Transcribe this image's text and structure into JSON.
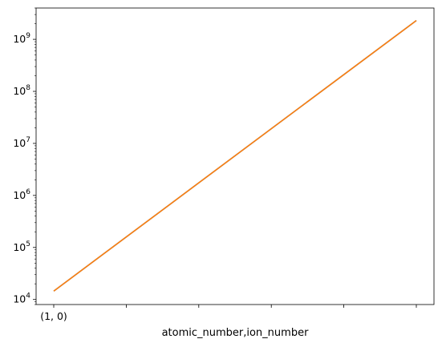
{
  "chart_data": {
    "type": "line",
    "title": "",
    "xlabel": "atomic_number,ion_number",
    "ylabel": "",
    "yscale": "log",
    "ylim": [
      8000,
      4000000000
    ],
    "x_tick_labels": [
      "(1, 0)",
      "",
      "",
      "",
      "",
      ""
    ],
    "y_tick_labels": [
      {
        "base": "10",
        "exp": "4",
        "value": 10000
      },
      {
        "base": "10",
        "exp": "5",
        "value": 100000
      },
      {
        "base": "10",
        "exp": "6",
        "value": 1000000
      },
      {
        "base": "10",
        "exp": "7",
        "value": 10000000
      },
      {
        "base": "10",
        "exp": "8",
        "value": 100000000
      },
      {
        "base": "10",
        "exp": "9",
        "value": 1000000000
      }
    ],
    "grid": false,
    "legend": "none",
    "series": [
      {
        "color": "#1f77b4",
        "x_tick_positions": [
          0,
          5
        ],
        "values": [
          14500,
          2300000000
        ]
      },
      {
        "color": "#ff7f0e",
        "x_tick_positions": [
          0,
          5
        ],
        "values": [
          14500,
          2300000000
        ]
      }
    ]
  }
}
